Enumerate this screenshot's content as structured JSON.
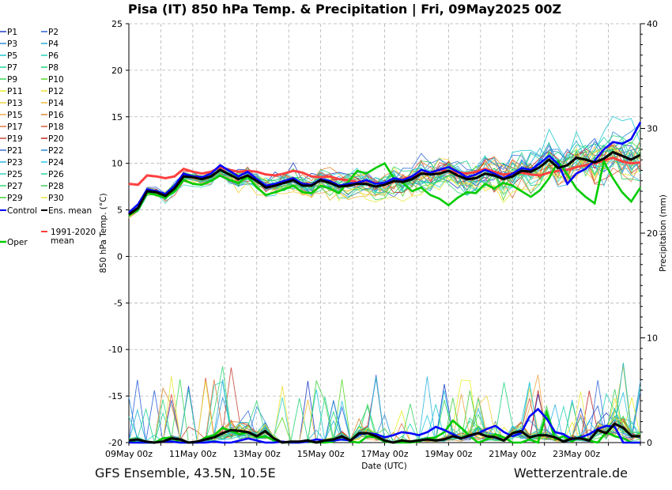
{
  "chart_data": {
    "type": "line",
    "title": "Pisa  (IT)  850 hPa Temp. & Precipitation | Fri, 09May2025 00Z",
    "ylabel_left": "850 hPa Temp. (°C)",
    "ylabel_right": "Precipitation (mm)",
    "xlabel": "Date (UTC)",
    "ylim_left": [
      -20,
      25
    ],
    "ylim_right": [
      0,
      40
    ],
    "yticks_left": [
      "25",
      "20",
      "15",
      "10",
      "5",
      "0",
      "-5",
      "-10",
      "-15",
      "-20"
    ],
    "yticks_right": [
      "40",
      "30",
      "20",
      "10",
      "0"
    ],
    "x_ticks": [
      "09May 00z",
      "11May 00z",
      "13May 00z",
      "15May 00z",
      "17May 00z",
      "19May 00z",
      "21May 00z",
      "23May 00z"
    ],
    "grid": true,
    "footer_left": "GFS Ensemble, 43.5N, 10.5E",
    "footer_right": "Wetterzentrale.de",
    "members": [
      {
        "name": "P1",
        "color": "#1f3cc8"
      },
      {
        "name": "P2",
        "color": "#2a62d8"
      },
      {
        "name": "P3",
        "color": "#2f8fd8"
      },
      {
        "name": "P4",
        "color": "#22b0d8"
      },
      {
        "name": "P5",
        "color": "#20c8d0"
      },
      {
        "name": "P6",
        "color": "#22d4b8"
      },
      {
        "name": "P7",
        "color": "#22d49a"
      },
      {
        "name": "P8",
        "color": "#22d47c"
      },
      {
        "name": "P9",
        "color": "#3cd85a"
      },
      {
        "name": "P10",
        "color": "#5ad82a"
      },
      {
        "name": "P11",
        "color": "#e8f028"
      },
      {
        "name": "P12",
        "color": "#f0e030"
      },
      {
        "name": "P13",
        "color": "#f0d040"
      },
      {
        "name": "P14",
        "color": "#f0b838"
      },
      {
        "name": "P15",
        "color": "#f0a848"
      },
      {
        "name": "P16",
        "color": "#d88830"
      },
      {
        "name": "P17",
        "color": "#e07848"
      },
      {
        "name": "P18",
        "color": "#d85838"
      },
      {
        "name": "P19",
        "color": "#c84838"
      },
      {
        "name": "P20",
        "color": "#c02828"
      },
      {
        "name": "P21",
        "color": "#3b6fd8"
      },
      {
        "name": "P22",
        "color": "#2a8ad8"
      },
      {
        "name": "P23",
        "color": "#30b4e0"
      },
      {
        "name": "P24",
        "color": "#28c8e0"
      },
      {
        "name": "P25",
        "color": "#3ad0c0"
      },
      {
        "name": "P26",
        "color": "#2ad4a0"
      },
      {
        "name": "P27",
        "color": "#34d878"
      },
      {
        "name": "P28",
        "color": "#3cd060"
      },
      {
        "name": "P29",
        "color": "#44d040"
      },
      {
        "name": "P30",
        "color": "#e8e840"
      }
    ],
    "special_series": [
      {
        "name": "Control",
        "color": "#0000ff"
      },
      {
        "name": "Ens. mean",
        "color": "#000000"
      },
      {
        "name": "1991-2020 mean",
        "color": "#ff4040"
      },
      {
        "name": "Oper",
        "color": "#00cc00"
      }
    ],
    "mean_temp": [
      4.5,
      5.2,
      7.0,
      6.9,
      6.5,
      7.3,
      8.6,
      8.5,
      8.3,
      8.6,
      9.3,
      8.8,
      8.3,
      8.7,
      8.1,
      7.4,
      7.6,
      7.9,
      8.2,
      7.6,
      7.6,
      8.2,
      7.9,
      7.5,
      7.6,
      7.8,
      7.8,
      7.5,
      7.7,
      8.1,
      8.0,
      8.3,
      8.9,
      8.8,
      8.9,
      9.2,
      8.7,
      8.3,
      8.4,
      8.9,
      8.7,
      8.3,
      8.6,
      9.2,
      9.1,
      9.6,
      10.4,
      9.5,
      9.8,
      10.6,
      10.4,
      10.1,
      10.5,
      11.2,
      10.8,
      10.4,
      10.9
    ],
    "control_temp": [
      4.7,
      5.6,
      7.2,
      7.0,
      6.7,
      7.6,
      8.9,
      8.6,
      8.5,
      8.9,
      9.8,
      9.2,
      8.6,
      9.1,
      8.3,
      7.6,
      7.8,
      8.1,
      8.4,
      7.8,
      7.7,
      8.3,
      8.1,
      7.6,
      7.8,
      7.9,
      8.2,
      7.8,
      7.9,
      8.4,
      8.2,
      8.6,
      9.3,
      9.0,
      9.3,
      9.6,
      9.1,
      8.5,
      8.8,
      9.3,
      8.9,
      8.4,
      8.9,
      9.5,
      9.3,
      10.0,
      10.8,
      9.9,
      7.8,
      8.9,
      9.4,
      10.3,
      11.5,
      12.3,
      12.1,
      12.6,
      14.4
    ],
    "climate_temp": [
      7.8,
      7.7,
      8.7,
      8.6,
      8.4,
      8.6,
      9.4,
      9.1,
      8.9,
      9.1,
      9.6,
      9.3,
      9.1,
      9.2,
      9.1,
      8.8,
      8.7,
      8.9,
      9.2,
      9.0,
      8.6,
      8.5,
      8.6,
      8.3,
      8.2,
      8.0,
      8.1,
      7.9,
      7.8,
      8.0,
      8.3,
      8.6,
      8.9,
      9.0,
      9.3,
      9.2,
      9.0,
      8.9,
      9.1,
      9.4,
      9.1,
      8.8,
      8.9,
      9.0,
      8.8,
      8.7,
      9.0,
      9.2,
      9.3,
      9.6,
      9.8,
      10.0,
      10.3,
      10.6,
      10.2,
      10.0,
      10.1
    ],
    "oper_temp": [
      4.4,
      5.0,
      6.8,
      6.6,
      6.3,
      7.0,
      8.2,
      7.8,
      7.7,
      8.1,
      8.7,
      8.2,
      7.9,
      8.6,
      7.4,
      6.6,
      6.9,
      7.2,
      7.6,
      6.9,
      6.8,
      7.6,
      7.3,
      6.8,
      8.0,
      9.2,
      8.9,
      9.5,
      10.0,
      8.4,
      7.9,
      7.0,
      7.4,
      6.6,
      6.2,
      5.5,
      6.3,
      6.9,
      6.8,
      7.8,
      7.3,
      7.9,
      7.6,
      7.0,
      6.4,
      7.1,
      8.4,
      10.2,
      8.8,
      7.3,
      6.4,
      5.7,
      10.2,
      8.4,
      6.9,
      5.9,
      7.4
    ],
    "mean_precip": [
      0.2,
      0.3,
      0.1,
      0.0,
      0.1,
      0.4,
      0.3,
      0.0,
      0.1,
      0.3,
      0.5,
      0.9,
      1.2,
      1.1,
      1.0,
      0.6,
      1.1,
      0.4,
      0.0,
      0.1,
      0.1,
      0.2,
      0.0,
      0.2,
      0.3,
      0.6,
      0.2,
      0.9,
      0.9,
      0.6,
      0.2,
      0.0,
      0.2,
      0.1,
      0.2,
      0.3,
      0.2,
      0.3,
      0.6,
      0.4,
      0.7,
      0.9,
      0.6,
      0.5,
      0.2,
      0.9,
      1.1,
      0.5,
      0.7,
      0.7,
      0.5,
      0.1,
      0.4,
      0.4,
      0.2,
      1.2,
      0.9,
      1.8,
      1.4,
      0.6,
      0.6
    ],
    "control_precip": [
      0.0,
      0.0,
      0.0,
      0.0,
      0.1,
      0.1,
      0.0,
      0.0,
      0.0,
      0.0,
      0.1,
      0.0,
      0.0,
      0.2,
      0.4,
      0.2,
      0.0,
      0.0,
      0.1,
      0.0,
      0.0,
      0.1,
      0.3,
      0.2,
      0.2,
      0.3,
      0.2,
      0.8,
      0.9,
      0.8,
      0.5,
      0.7,
      1.0,
      0.9,
      0.7,
      1.0,
      1.5,
      1.2,
      0.8,
      0.4,
      0.6,
      0.9,
      1.3,
      1.6,
      1.0,
      0.6,
      0.9,
      2.5,
      3.2,
      2.3,
      1.0,
      0.8,
      0.3,
      0.5,
      0.8,
      1.3,
      1.6,
      1.5,
      0.0,
      0.0,
      0.0
    ],
    "oper_precip": [
      0.2,
      0.0,
      0.0,
      0.0,
      0.4,
      0.5,
      0.0,
      0.0,
      0.0,
      0.5,
      0.7,
      1.4,
      1.1,
      0.8,
      1.0,
      0.5,
      0.6,
      0.2,
      0.0,
      0.0,
      0.0,
      0.1,
      0.0,
      0.0,
      0.1,
      0.6,
      0.1,
      0.0,
      0.6,
      0.5,
      0.1,
      0.0,
      0.0,
      0.0,
      0.1,
      0.4,
      0.5,
      1.0,
      2.1,
      1.4,
      0.6,
      0.0,
      0.3,
      0.8,
      0.5,
      0.0,
      0.0,
      0.3,
      0.0,
      2.9,
      0.3,
      0.6,
      0.1,
      0.6,
      0.2,
      0.0,
      1.0,
      0.6,
      0.4,
      0.0,
      0.0
    ]
  }
}
